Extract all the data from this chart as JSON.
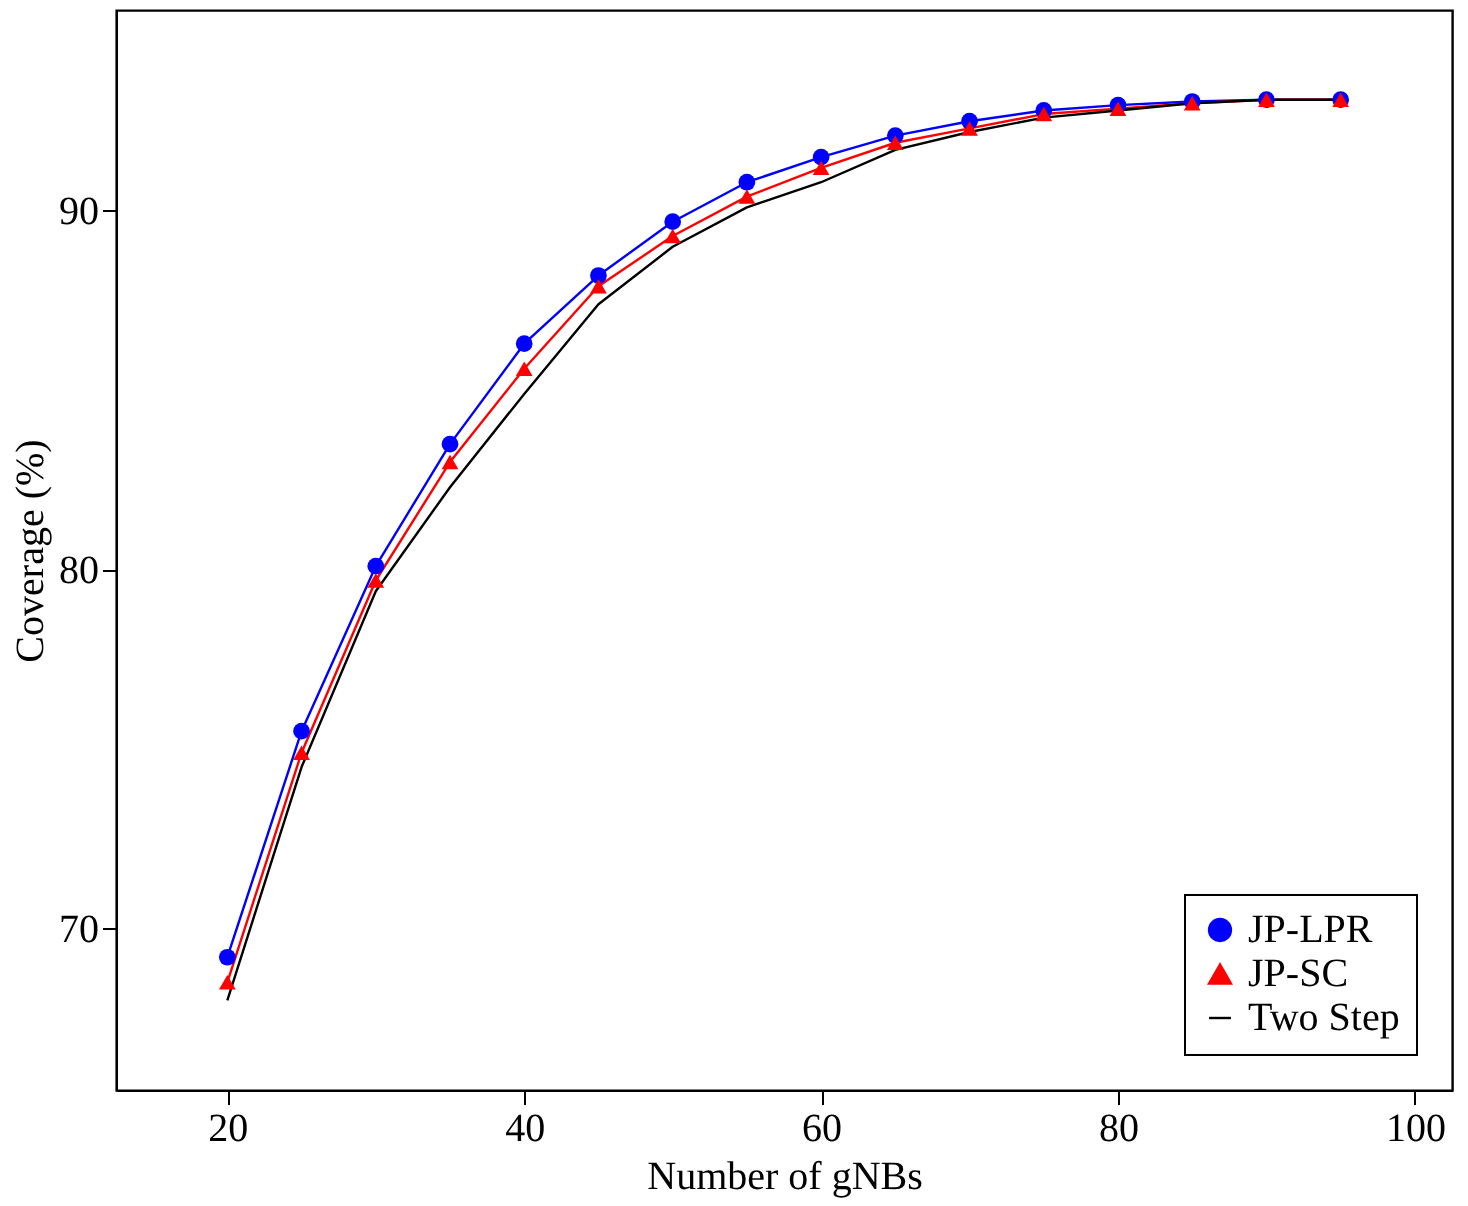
{
  "chart_data": {
    "type": "line",
    "xlabel": "Number of gNBs",
    "ylabel": "Coverage (%)",
    "x": [
      20,
      25,
      30,
      35,
      40,
      45,
      50,
      55,
      60,
      65,
      70,
      75,
      80,
      85,
      90,
      95
    ],
    "series": [
      {
        "name": "JP-LPR",
        "color": "#0000ff",
        "marker": "circle",
        "values": [
          69.2,
          75.5,
          80.1,
          83.5,
          86.3,
          88.2,
          89.7,
          90.8,
          91.5,
          92.1,
          92.5,
          92.8,
          92.95,
          93.05,
          93.1,
          93.1
        ]
      },
      {
        "name": "JP-SC",
        "color": "#ff0000",
        "marker": "triangle",
        "values": [
          68.5,
          74.9,
          79.7,
          83.0,
          85.6,
          87.9,
          89.3,
          90.4,
          91.2,
          91.9,
          92.3,
          92.7,
          92.85,
          93.0,
          93.1,
          93.1
        ]
      },
      {
        "name": "Two Step",
        "color": "#000000",
        "marker": "none",
        "values": [
          68.0,
          74.5,
          79.4,
          82.3,
          84.9,
          87.4,
          89.0,
          90.1,
          90.8,
          91.7,
          92.2,
          92.6,
          92.8,
          93.0,
          93.1,
          93.1
        ]
      }
    ],
    "xlim": [
      12.5,
      102.5
    ],
    "xticks": [
      20,
      40,
      60,
      80,
      100
    ],
    "ylim": [
      65.5,
      95.6
    ],
    "yticks": [
      70,
      80,
      90
    ],
    "grid": false,
    "legend": "bottom right",
    "line_style": "solid"
  }
}
